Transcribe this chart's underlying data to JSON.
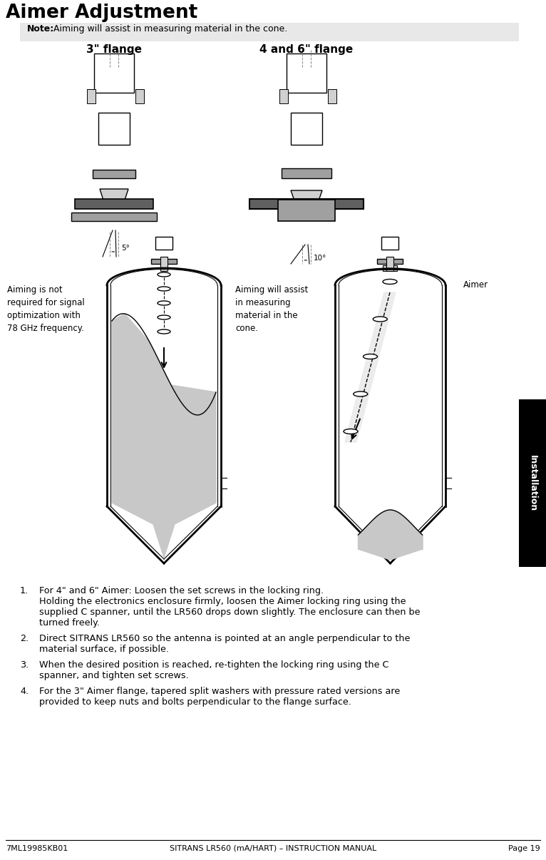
{
  "title": "Aimer Adjustment",
  "note_text": "Aiming will assist in measuring material in the cone.",
  "note_bold": "Note:",
  "label_3inch": "3\" flange",
  "label_46inch": "4 and 6\" flange",
  "left_annotation": "Aiming is not\nrequired for signal\noptimization with\n78 GHz frequency.",
  "mid_annotation": "Aiming will assist\nin measuring\nmaterial in the\ncone.",
  "right_annotation": "Aimer",
  "angle_3": "5°",
  "angle_46": "10°",
  "numbered_items": [
    "For 4\" and 6\" Aimer: Loosen the set screws in the locking ring.\nHolding the electronics enclosure firmly, loosen the Aimer locking ring using the\nsupplied C spanner, until the LR560 drops down slightly. The enclosure can then be\nturned freely.",
    "Direct SITRANS LR560 so the antenna is pointed at an angle perpendicular to the\nmaterial surface, if possible.",
    "When the desired position is reached, re-tighten the locking ring using the C\nspanner, and tighten set screws.",
    "For the 3\" Aimer flange, tapered split washers with pressure rated versions are\nprovided to keep nuts and bolts perpendicular to the flange surface."
  ],
  "footer_left": "7ML19985KB01",
  "footer_center": "SITRANS LR560 (mA/HART) – INSTRUCTION MANUAL",
  "footer_right": "Page 19",
  "sidebar_text": "Installation",
  "bg_color": "#ffffff",
  "note_bg": "#e8e8e8",
  "sidebar_bg": "#000000",
  "sidebar_text_color": "#ffffff",
  "gray_light": "#d0d0d0",
  "gray_mid": "#a0a0a0",
  "gray_dark": "#606060"
}
